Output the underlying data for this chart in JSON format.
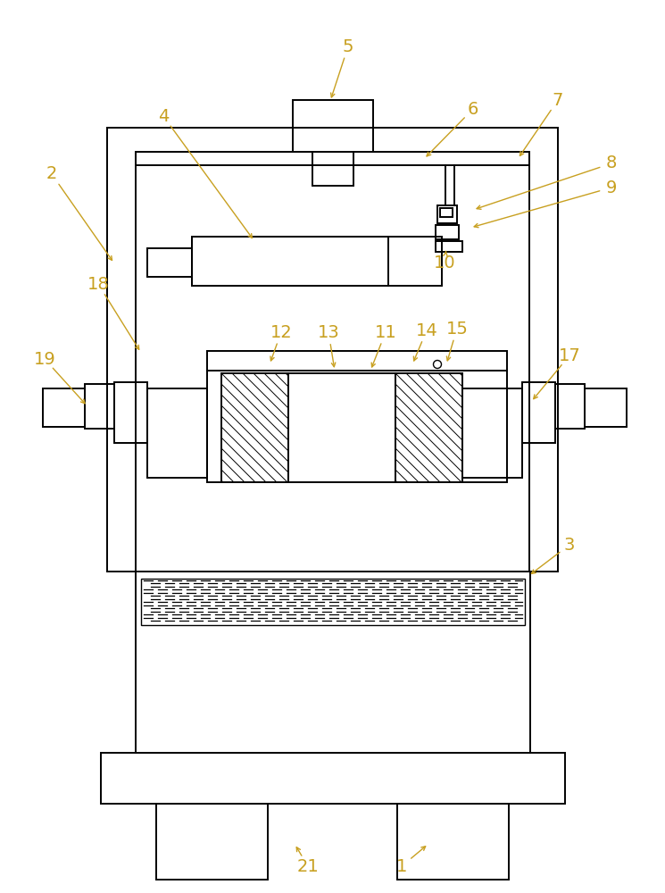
{
  "bg": "#ffffff",
  "lc": "#000000",
  "tc": "#c8a020",
  "figsize": [
    7.45,
    10.0
  ],
  "dpi": 100,
  "lw": 1.4,
  "labels": [
    [
      "1",
      450,
      970,
      480,
      945
    ],
    [
      "21",
      345,
      970,
      330,
      945
    ],
    [
      "2",
      58,
      195,
      128,
      295
    ],
    [
      "3",
      638,
      610,
      592,
      645
    ],
    [
      "4",
      183,
      130,
      285,
      270
    ],
    [
      "5",
      390,
      52,
      370,
      113
    ],
    [
      "6",
      530,
      122,
      475,
      178
    ],
    [
      "7",
      625,
      112,
      580,
      178
    ],
    [
      "8",
      685,
      183,
      530,
      235
    ],
    [
      "9",
      685,
      210,
      527,
      255
    ],
    [
      "10",
      498,
      295,
      500,
      278
    ],
    [
      "12",
      315,
      372,
      302,
      408
    ],
    [
      "13",
      368,
      372,
      375,
      415
    ],
    [
      "11",
      432,
      372,
      415,
      415
    ],
    [
      "14",
      478,
      370,
      462,
      408
    ],
    [
      "15",
      512,
      368,
      500,
      408
    ],
    [
      "17",
      638,
      398,
      595,
      450
    ],
    [
      "18",
      110,
      318,
      158,
      395
    ],
    [
      "19",
      50,
      402,
      98,
      455
    ]
  ]
}
